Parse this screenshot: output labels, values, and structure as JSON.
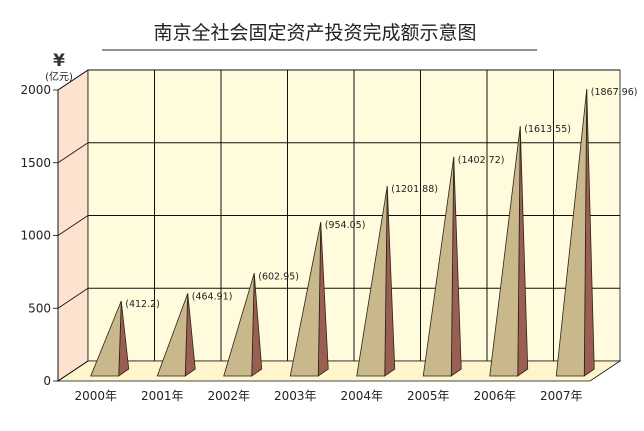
{
  "chart_data": {
    "type": "bar",
    "title": "南京全社会固定资产投资完成额示意图",
    "y_unit_symbol": "¥",
    "y_unit": "(亿元)",
    "categories": [
      "2000年",
      "2001年",
      "2002年",
      "2003年",
      "2004年",
      "2005年",
      "2006年",
      "2007年"
    ],
    "values": [
      412.2,
      464.91,
      602.95,
      954.05,
      1201.88,
      1402.72,
      1613.55,
      1867.96
    ],
    "value_labels": [
      "(412.2)",
      "(464.91)",
      "(602.95)",
      "(954.05)",
      "(1201.88)",
      "(1402.72)",
      "(1613.55)",
      "(1867.96)"
    ],
    "y_ticks": [
      0,
      500,
      1000,
      1500,
      2000
    ],
    "ylim": [
      0,
      2000
    ],
    "grid": true,
    "bar_shape": "cone",
    "colors": {
      "wall": "#fffbdc",
      "side_wall": "#fde3cf",
      "floor": "#fff5cc",
      "grid": "#111111",
      "cone_front": "#c9b88b",
      "cone_side": "#9a5f52",
      "cone_edge": "#2a2418"
    }
  }
}
